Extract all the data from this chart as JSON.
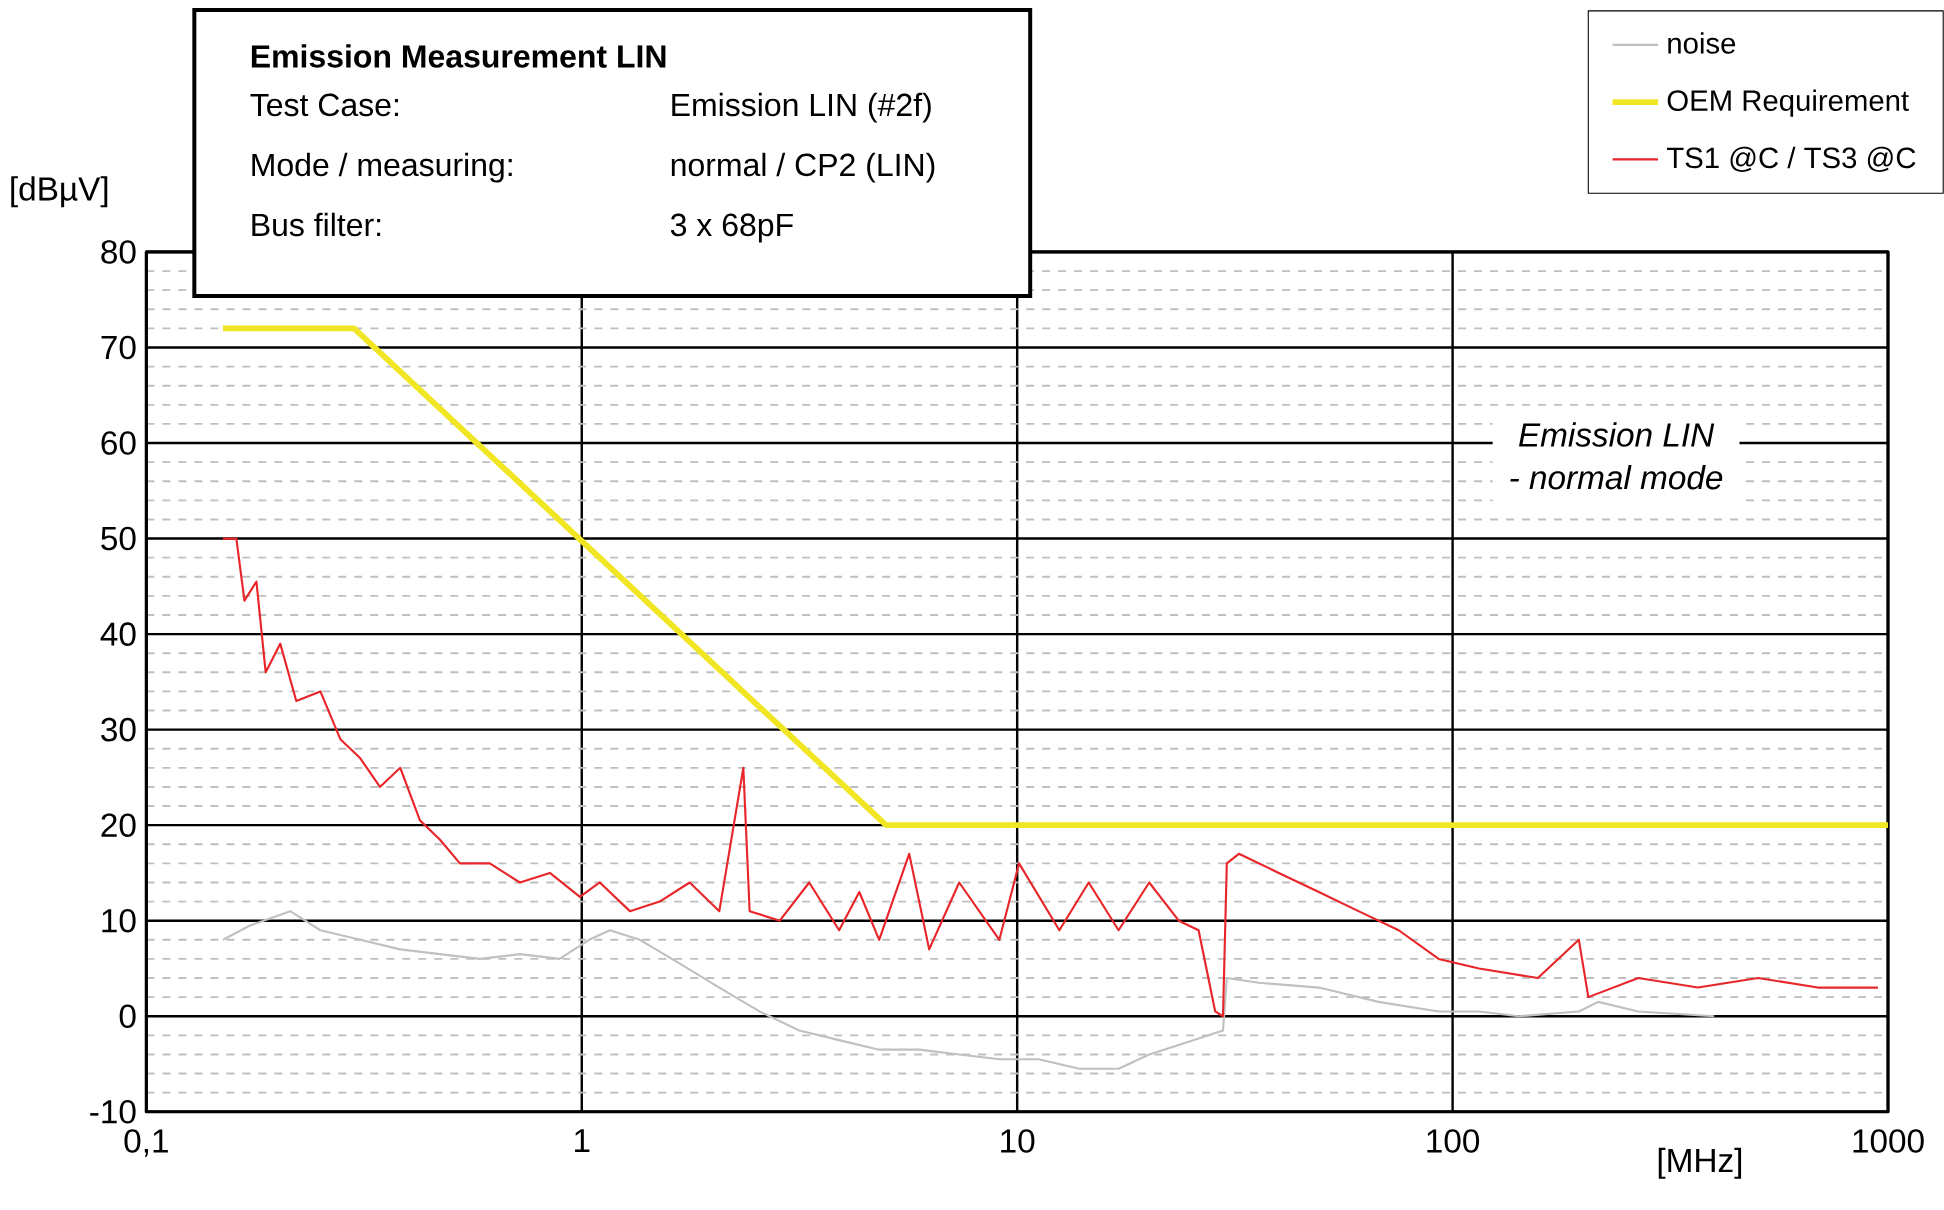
{
  "chart_data": {
    "type": "line",
    "title": "Emission Measurement LIN",
    "xlabel": "[MHz]",
    "ylabel": "[dBµV]",
    "annotations": [
      "Test Case:",
      "Emission LIN (#2f)",
      "Mode / measuring:",
      "normal / CP2 (LIN)",
      "Bus filter:",
      "3 x 68pF",
      "Emission LIN",
      "- normal mode"
    ],
    "log": "x",
    "grid": true,
    "legend": "top right",
    "xlim": [
      0.1,
      1000
    ],
    "xticks": [
      {
        "value": 0.1,
        "label": "0,1"
      },
      1,
      10,
      100,
      1000
    ],
    "ylim": [
      -10,
      80
    ],
    "yticks": [
      -10,
      0,
      10,
      20,
      30,
      40,
      50,
      60,
      70,
      80
    ],
    "series": [
      {
        "name": "noise",
        "color": "#c0c0c0",
        "x": [
          0.15,
          0.173,
          0.214,
          0.251,
          0.31,
          0.383,
          0.472,
          0.583,
          0.721,
          0.889,
          1.04,
          1.16,
          1.36,
          1.68,
          2.07,
          2.56,
          3.16,
          3.9,
          4.82,
          5.96,
          7.36,
          9.1,
          11.2,
          13.9,
          17.1,
          20.1,
          23.5,
          27.5,
          29.7,
          30.3,
          35.9,
          49.3,
          67.6,
          92.9,
          115,
          142,
          195,
          216,
          267,
          399
        ],
        "values": [
          8,
          9.5,
          11,
          9,
          8,
          7,
          6.5,
          6,
          6.5,
          6,
          8,
          9,
          8,
          5.5,
          3,
          0.5,
          -1.5,
          -2.5,
          -3.5,
          -3.5,
          -4,
          -4.5,
          -4.5,
          -5.5,
          -5.5,
          -4,
          -3,
          -2,
          -1.5,
          4,
          3.5,
          3,
          1.5,
          0.5,
          0.5,
          0,
          0.5,
          1.5,
          0.5,
          0
        ]
      },
      {
        "name": "OEM Requirement",
        "color": "#f0e624",
        "x": [
          0.15,
          0.3,
          5,
          1000
        ],
        "values": [
          72,
          72,
          20,
          20
        ]
      },
      {
        "name": "TS1 @C / TS3 @C",
        "color": "#e8262a",
        "x": [
          0.15,
          0.161,
          0.168,
          0.179,
          0.188,
          0.203,
          0.221,
          0.251,
          0.279,
          0.31,
          0.344,
          0.383,
          0.425,
          0.472,
          0.525,
          0.615,
          0.721,
          0.845,
          0.99,
          1.1,
          1.29,
          1.51,
          1.77,
          2.07,
          2.35,
          2.43,
          2.85,
          3.33,
          3.9,
          4.34,
          4.82,
          5.65,
          6.28,
          7.36,
          9.1,
          10.1,
          12.5,
          14.6,
          17.1,
          20.1,
          23.5,
          26.1,
          28.5,
          29.7,
          30.3,
          32.3,
          39.9,
          49.3,
          60.8,
          75.2,
          92.9,
          115,
          157,
          195,
          205,
          267,
          366,
          503,
          690,
          948
        ],
        "values": [
          50,
          50,
          43.5,
          45.5,
          36,
          39,
          33,
          34,
          29,
          27,
          24,
          26,
          20.5,
          18.5,
          16,
          16,
          14,
          15,
          12.5,
          14,
          11,
          12,
          14,
          11,
          26,
          11,
          10,
          14,
          9,
          13,
          8,
          17,
          7,
          14,
          8,
          16,
          9,
          14,
          9,
          14,
          10,
          9,
          0.5,
          0,
          16,
          17,
          15,
          13,
          11,
          9,
          6,
          5,
          4,
          8,
          2,
          4,
          3,
          4,
          3,
          3
        ]
      }
    ]
  }
}
